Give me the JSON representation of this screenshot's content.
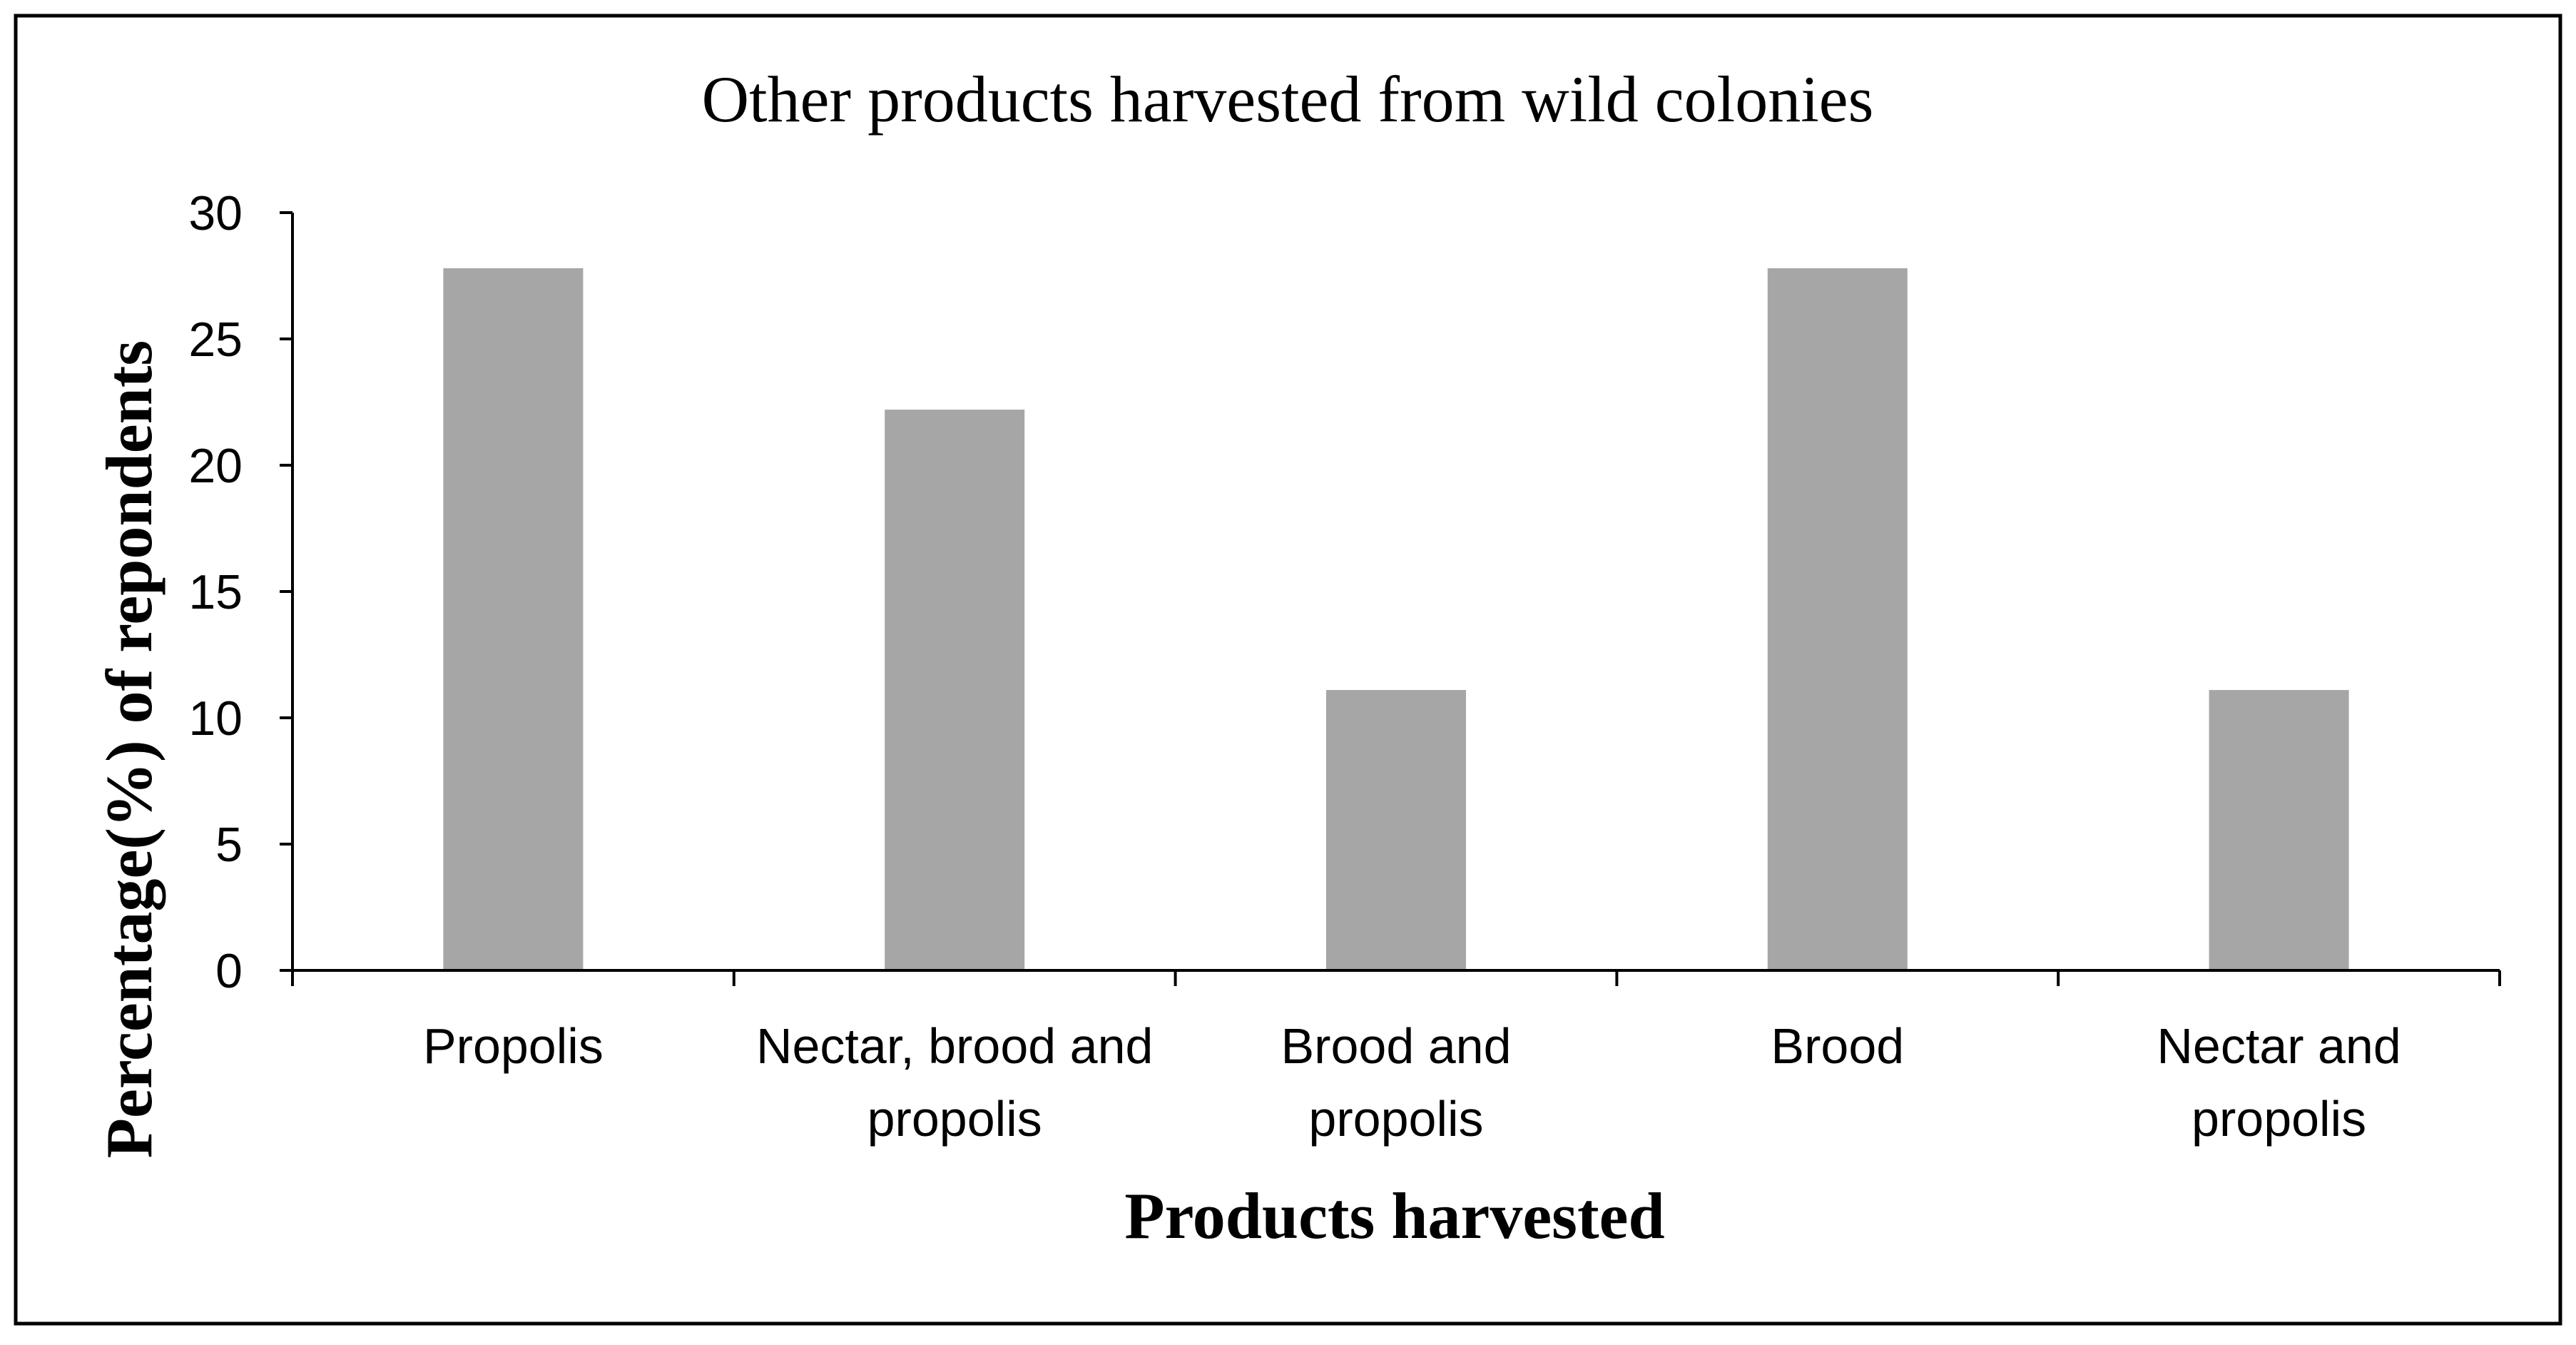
{
  "chart_data": {
    "type": "bar",
    "title": "Other products harvested from wild colonies",
    "xlabel": "Products harvested",
    "ylabel": "Percentage(%) of repondents",
    "categories": [
      [
        "Propolis"
      ],
      [
        "Nectar, brood and",
        "propolis"
      ],
      [
        "Brood and",
        "propolis"
      ],
      [
        "Brood"
      ],
      [
        "Nectar and",
        "propolis"
      ]
    ],
    "values": [
      27.8,
      22.2,
      11.1,
      27.8,
      11.1
    ],
    "ylim": [
      0,
      30
    ],
    "yticks": [
      0,
      5,
      10,
      15,
      20,
      25,
      30
    ],
    "bar_color": "#a6a6a6",
    "grid": false,
    "legend": "none"
  }
}
